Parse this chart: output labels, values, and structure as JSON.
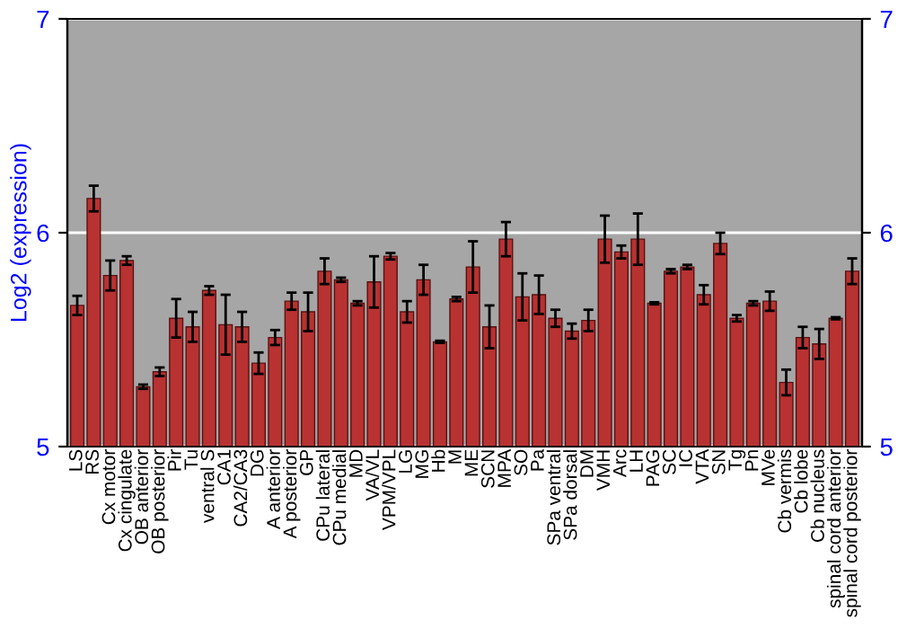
{
  "chart_data": {
    "type": "bar",
    "ylabel": "Log2 (expression)",
    "categories": [
      "LS",
      "RS",
      "Cx motor",
      "Cx cingulate",
      "OB anterior",
      "OB posterior",
      "Pir",
      "Tu",
      "ventral S",
      "CA1",
      "CA2/CA3",
      "DG",
      "A anterior",
      "A posterior",
      "GP",
      "CPu lateral",
      "CPu medial",
      "MD",
      "VA/VL",
      "VPM/VPL",
      "LG",
      "MG",
      "Hb",
      "M",
      "ME",
      "SCN",
      "MPA",
      "SO",
      "Pa",
      "SPa ventral",
      "SPa dorsal",
      "DM",
      "VMH",
      "Arc",
      "LH",
      "PAG",
      "SC",
      "IC",
      "VTA",
      "SN",
      "Tg",
      "Pn",
      "MVe",
      "Cb vermis",
      "Cb lobe",
      "Cb nucleus",
      "spinal cord anterior",
      "spinal cord posterior"
    ],
    "values": [
      5.66,
      6.16,
      5.8,
      5.87,
      5.28,
      5.35,
      5.6,
      5.56,
      5.73,
      5.57,
      5.56,
      5.39,
      5.51,
      5.68,
      5.63,
      5.82,
      5.78,
      5.67,
      5.77,
      5.89,
      5.63,
      5.78,
      5.49,
      5.69,
      5.84,
      5.56,
      5.97,
      5.7,
      5.71,
      5.6,
      5.54,
      5.59,
      5.97,
      5.91,
      5.97,
      5.67,
      5.82,
      5.84,
      5.71,
      5.95,
      5.6,
      5.67,
      5.68,
      5.3,
      5.51,
      5.48,
      5.6,
      5.82
    ],
    "errors": [
      0.045,
      0.06,
      0.07,
      0.02,
      0.01,
      0.02,
      0.09,
      0.07,
      0.02,
      0.14,
      0.07,
      0.05,
      0.035,
      0.04,
      0.09,
      0.06,
      0.01,
      0.01,
      0.12,
      0.015,
      0.05,
      0.07,
      0.005,
      0.01,
      0.12,
      0.1,
      0.08,
      0.11,
      0.09,
      0.04,
      0.035,
      0.05,
      0.11,
      0.03,
      0.12,
      0.005,
      0.01,
      0.01,
      0.045,
      0.05,
      0.015,
      0.01,
      0.045,
      0.06,
      0.05,
      0.07,
      0.005,
      0.06
    ],
    "color": "#b83232",
    "ylim": [
      5,
      7
    ],
    "yticks": [
      5,
      6,
      7
    ],
    "y2lim": [
      5,
      7
    ],
    "y2ticks": [
      5,
      6,
      7
    ],
    "grid": "y"
  }
}
